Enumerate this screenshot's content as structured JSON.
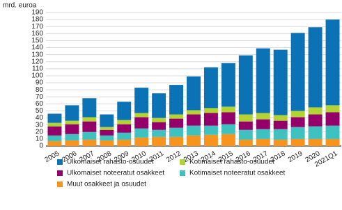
{
  "chart_data": {
    "type": "stacked_bar",
    "y_label": "mrd. euroa",
    "categories": [
      "2005",
      "2006",
      "2007",
      "2008",
      "2009",
      "2010",
      "2011",
      "2012",
      "2013",
      "2014",
      "2015",
      "2016",
      "2017",
      "2018",
      "2019",
      "2020",
      "2021Q1"
    ],
    "series": [
      {
        "name": "Muut osakkeet ja osuudet",
        "color": "#f7941d",
        "values": [
          7,
          8,
          9,
          8,
          9,
          12,
          13,
          13,
          15,
          16,
          17,
          9,
          10,
          9,
          10,
          10,
          10
        ]
      },
      {
        "name": "Kotimaiset noteeratut osakkeet",
        "color": "#3fc1c0",
        "values": [
          8,
          9,
          11,
          7,
          10,
          13,
          10,
          13,
          14,
          13,
          14,
          14,
          14,
          15,
          17,
          18,
          19
        ]
      },
      {
        "name": "Ulkomaiset noteeratut osakkeet",
        "color": "#930069",
        "values": [
          13,
          14,
          15,
          8,
          12,
          16,
          11,
          13,
          16,
          18,
          17,
          12,
          14,
          12,
          14,
          17,
          19
        ]
      },
      {
        "name": "Kotimaiset rahasto-osuudet",
        "color": "#b3d334",
        "values": [
          5,
          5,
          6,
          4,
          6,
          6,
          6,
          6,
          6,
          7,
          8,
          10,
          9,
          8,
          9,
          10,
          10
        ]
      },
      {
        "name": "Ulkomaiset rahasto-osuudet",
        "color": "#0b73b5",
        "values": [
          13,
          22,
          27,
          18,
          26,
          36,
          35,
          42,
          48,
          58,
          62,
          84,
          92,
          93,
          111,
          114,
          122
        ]
      }
    ],
    "ylim": [
      0,
      190
    ],
    "yticks": [
      0,
      10,
      20,
      30,
      40,
      50,
      60,
      70,
      80,
      90,
      100,
      110,
      120,
      130,
      140,
      150,
      160,
      170,
      180,
      190
    ],
    "grid": true
  }
}
